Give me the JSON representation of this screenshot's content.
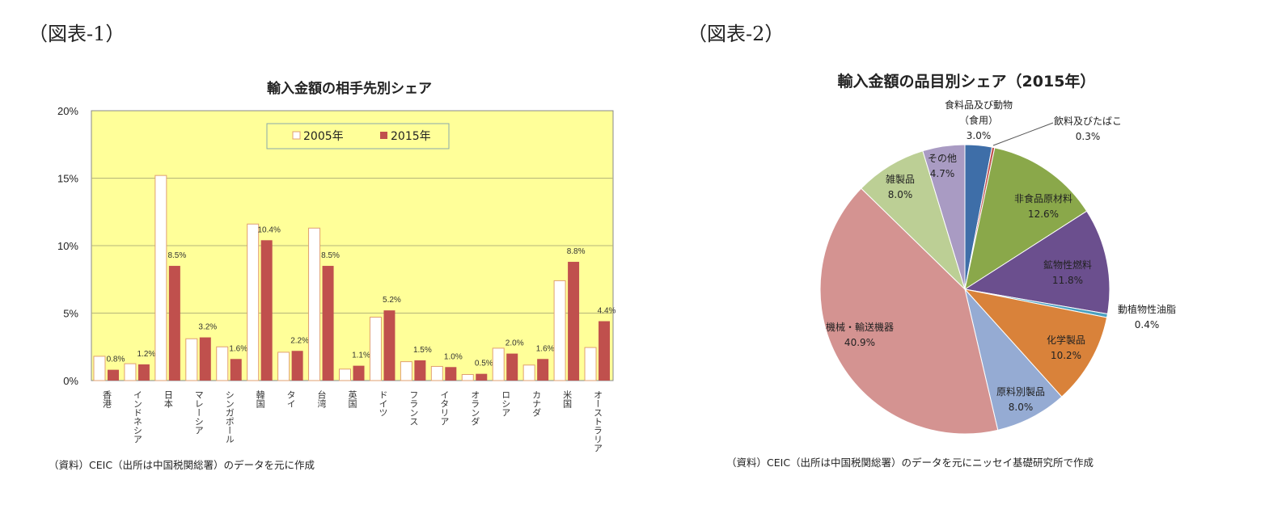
{
  "figures": [
    {
      "label": "（図表-1）",
      "title": "輸入金額の相手先別シェア",
      "source": "（資料）CEIC（出所は中国税関総署）のデータを元に作成"
    },
    {
      "label": "（図表-2）",
      "title": "輸入金額の品目別シェア（2015年）",
      "source": "（資料）CEIC（出所は中国税関総署）のデータを元にニッセイ基礎研究所で作成"
    }
  ],
  "chart_data": [
    {
      "type": "bar",
      "title": "輸入金額の相手先別シェア",
      "categories": [
        "香港",
        "インドネシア",
        "日本",
        "マレーシア",
        "シンガポール",
        "韓国",
        "タイ",
        "台湾",
        "英国",
        "ドイツ",
        "フランス",
        "イタリア",
        "オランダ",
        "ロシア",
        "カナダ",
        "米国",
        "オーストラリア"
      ],
      "series": [
        {
          "name": "2005年",
          "color": "#ffffff",
          "values": [
            1.8,
            1.25,
            15.2,
            3.1,
            2.5,
            11.6,
            2.1,
            11.3,
            0.85,
            4.7,
            1.4,
            1.05,
            0.45,
            2.4,
            1.15,
            7.4,
            2.45
          ]
        },
        {
          "name": "2015年",
          "color": "#c0504d",
          "values": [
            0.8,
            1.2,
            8.5,
            3.2,
            1.6,
            10.4,
            2.2,
            8.5,
            1.1,
            5.2,
            1.5,
            1.0,
            0.5,
            2.0,
            1.6,
            8.8,
            4.4
          ],
          "data_labels": [
            "0.8%",
            "1.2%",
            "8.5%",
            "3.2%",
            "1.6%",
            "10.4%",
            "2.2%",
            "8.5%",
            "1.1%",
            "5.2%",
            "1.5%",
            "1.0%",
            "0.5%",
            "2.0%",
            "1.6%",
            "8.8%",
            "4.4%"
          ]
        }
      ],
      "yticks": [
        "0%",
        "5%",
        "10%",
        "15%",
        "20%"
      ],
      "ylim": [
        0,
        20
      ],
      "grid": true,
      "legend": "top-center",
      "plot_background": "#ffff99"
    },
    {
      "type": "pie",
      "title": "輸入金額の品目別シェア（2015年）",
      "slices": [
        {
          "label": "食料品及び動物（食用）",
          "lines": [
            "食料品及び動物",
            "（食用）",
            "3.0%"
          ],
          "value": 3.0,
          "color": "#3e6ea8"
        },
        {
          "label": "飲料及びたばこ",
          "lines": [
            "飲料及びたばこ",
            "0.3%"
          ],
          "value": 0.3,
          "color": "#c0504d"
        },
        {
          "label": "非食品原材料",
          "lines": [
            "非食品原材料",
            "12.6%"
          ],
          "value": 12.6,
          "color": "#8aa84a"
        },
        {
          "label": "鉱物性燃料",
          "lines": [
            "鉱物性燃料",
            "11.8%"
          ],
          "value": 11.8,
          "color": "#6b4f8e"
        },
        {
          "label": "動植物性油脂",
          "lines": [
            "動植物性油脂",
            "0.4%"
          ],
          "value": 0.4,
          "color": "#4aa0c0"
        },
        {
          "label": "化学製品",
          "lines": [
            "化学製品",
            "10.2%"
          ],
          "value": 10.2,
          "color": "#d9823a"
        },
        {
          "label": "原料別製品",
          "lines": [
            "原料別製品",
            "8.0%"
          ],
          "value": 8.0,
          "color": "#95abd3"
        },
        {
          "label": "機械・輸送機器",
          "lines": [
            "機械・輸送機器",
            "40.9%"
          ],
          "value": 40.9,
          "color": "#d49391"
        },
        {
          "label": "雑製品",
          "lines": [
            "雑製品",
            "8.0%"
          ],
          "value": 8.0,
          "color": "#bccf95"
        },
        {
          "label": "その他",
          "lines": [
            "その他",
            "4.7%"
          ],
          "value": 4.7,
          "color": "#a99bc3"
        }
      ]
    }
  ]
}
